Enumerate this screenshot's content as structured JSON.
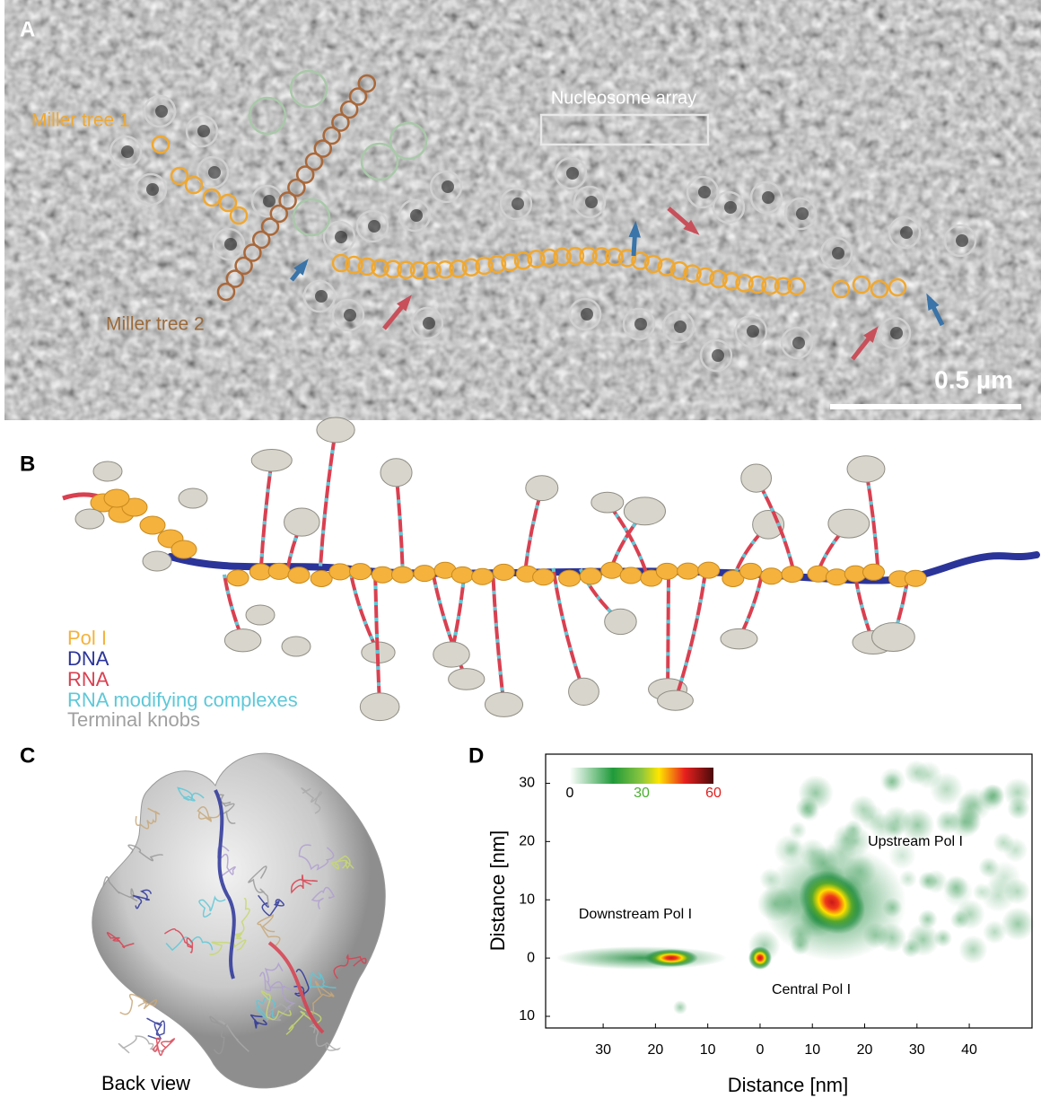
{
  "panels": {
    "A": {
      "label": "A",
      "annotations": {
        "miller_tree_1": "Miller tree 1",
        "miller_tree_2": "Miller tree 2",
        "nucleosome_array": "Nucleosome array"
      },
      "scale_bar": "0.5 µm"
    },
    "B": {
      "label": "B",
      "legend": [
        "Pol I",
        "DNA",
        "RNA",
        "RNA modifying complexes",
        "Terminal knobs"
      ]
    },
    "C": {
      "label": "C",
      "caption": "Back view"
    },
    "D": {
      "label": "D",
      "xlabel": "Distance [nm]",
      "ylabel": "Distance [nm]",
      "xlim": [
        -41,
        52
      ],
      "ylim": [
        -12,
        35
      ],
      "xticks": [
        {
          "value": -30,
          "label": "30"
        },
        {
          "value": -20,
          "label": "20"
        },
        {
          "value": -10,
          "label": "10"
        },
        0,
        10,
        20,
        30,
        40
      ],
      "yticks": [
        {
          "value": -10,
          "label": "10"
        },
        0,
        10,
        20,
        30
      ],
      "colorbar_ticks": [
        0,
        30,
        60
      ],
      "annotations": {
        "upstream": "Upstream Pol I",
        "downstream": "Downstream Pol I",
        "central": "Central Pol I"
      }
    }
  }
}
